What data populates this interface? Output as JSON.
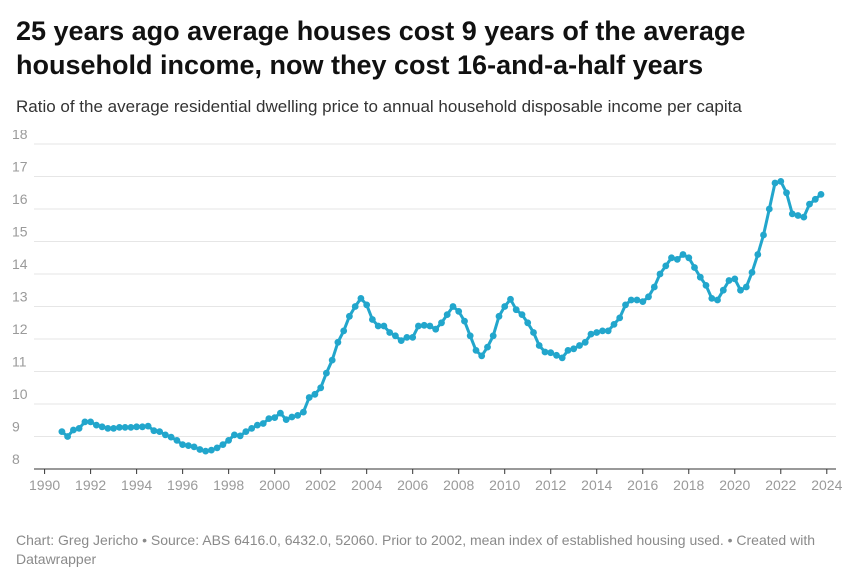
{
  "title": "25 years ago average houses cost 9 years of the average household income, now they cost 16-and-a-half years",
  "subtitle": "Ratio of the average residential dwelling price to annual household disposable income per capita",
  "footer": {
    "credit": "Chart: Greg Jericho",
    "source": "Source: ABS 6416.0, 6432.0, 52060. Prior to 2002, mean index of established housing used.",
    "created": "Created with Datawrapper"
  },
  "colors": {
    "line": "#22a6cc",
    "grid": "#e6e6e6",
    "tick": "#9a9a9a"
  },
  "chart_data": {
    "type": "line",
    "xlim": [
      1989.8,
      2024.4
    ],
    "ylim": [
      8,
      18
    ],
    "yticks": [
      "8",
      "9",
      "10",
      "11",
      "12",
      "13",
      "14",
      "15",
      "16",
      "17",
      "18"
    ],
    "xticks": [
      "1990",
      "1992",
      "1994",
      "1996",
      "1998",
      "2000",
      "2002",
      "2004",
      "2006",
      "2008",
      "2010",
      "2012",
      "2014",
      "2016",
      "2018",
      "2020",
      "2022",
      "2024"
    ],
    "grid": "horizontal",
    "series": [
      {
        "x": [
          1990.75,
          1991.0,
          1991.25,
          1991.5,
          1991.75,
          1992.0,
          1992.25,
          1992.5,
          1992.75,
          1993.0,
          1993.25,
          1993.5,
          1993.75,
          1994.0,
          1994.25,
          1994.5,
          1994.75,
          1995.0,
          1995.25,
          1995.5,
          1995.75,
          1996.0,
          1996.25,
          1996.5,
          1996.75,
          1997.0,
          1997.25,
          1997.5,
          1997.75,
          1998.0,
          1998.25,
          1998.5,
          1998.75,
          1999.0,
          1999.25,
          1999.5,
          1999.75,
          2000.0,
          2000.25,
          2000.5,
          2000.75,
          2001.0,
          2001.25,
          2001.5,
          2001.75,
          2002.0,
          2002.25,
          2002.5,
          2002.75,
          2003.0,
          2003.25,
          2003.5,
          2003.75,
          2004.0,
          2004.25,
          2004.5,
          2004.75,
          2005.0,
          2005.25,
          2005.5,
          2005.75,
          2006.0,
          2006.25,
          2006.5,
          2006.75,
          2007.0,
          2007.25,
          2007.5,
          2007.75,
          2008.0,
          2008.25,
          2008.5,
          2008.75,
          2009.0,
          2009.25,
          2009.5,
          2009.75,
          2010.0,
          2010.25,
          2010.5,
          2010.75,
          2011.0,
          2011.25,
          2011.5,
          2011.75,
          2012.0,
          2012.25,
          2012.5,
          2012.75,
          2013.0,
          2013.25,
          2013.5,
          2013.75,
          2014.0,
          2014.25,
          2014.5,
          2014.75,
          2015.0,
          2015.25,
          2015.5,
          2015.75,
          2016.0,
          2016.25,
          2016.5,
          2016.75,
          2017.0,
          2017.25,
          2017.5,
          2017.75,
          2018.0,
          2018.25,
          2018.5,
          2018.75,
          2019.0,
          2019.25,
          2019.5,
          2019.75,
          2020.0,
          2020.25,
          2020.5,
          2020.75,
          2021.0,
          2021.25,
          2021.5,
          2021.75,
          2022.0,
          2022.25,
          2022.5,
          2022.75,
          2023.0,
          2023.25,
          2023.5,
          2023.75
        ],
        "values": [
          9.15,
          9.0,
          9.2,
          9.25,
          9.45,
          9.45,
          9.35,
          9.3,
          9.25,
          9.25,
          9.28,
          9.28,
          9.28,
          9.3,
          9.3,
          9.32,
          9.18,
          9.15,
          9.05,
          8.98,
          8.88,
          8.75,
          8.72,
          8.68,
          8.6,
          8.55,
          8.58,
          8.65,
          8.75,
          8.88,
          9.05,
          9.02,
          9.15,
          9.25,
          9.35,
          9.4,
          9.55,
          9.58,
          9.72,
          9.52,
          9.6,
          9.65,
          9.75,
          10.2,
          10.3,
          10.5,
          10.95,
          11.35,
          11.9,
          12.25,
          12.7,
          13.0,
          13.25,
          13.05,
          12.6,
          12.4,
          12.4,
          12.2,
          12.1,
          11.95,
          12.05,
          12.05,
          12.4,
          12.42,
          12.4,
          12.3,
          12.5,
          12.75,
          13.0,
          12.85,
          12.55,
          12.1,
          11.65,
          11.48,
          11.75,
          12.1,
          12.7,
          13.0,
          13.22,
          12.9,
          12.75,
          12.5,
          12.2,
          11.8,
          11.6,
          11.58,
          11.5,
          11.42,
          11.65,
          11.7,
          11.8,
          11.9,
          12.15,
          12.2,
          12.25,
          12.25,
          12.45,
          12.65,
          13.05,
          13.2,
          13.2,
          13.15,
          13.3,
          13.6,
          14.0,
          14.25,
          14.5,
          14.45,
          14.6,
          14.5,
          14.2,
          13.9,
          13.65,
          13.25,
          13.2,
          13.5,
          13.8,
          13.85,
          13.5,
          13.6,
          14.05,
          14.6,
          15.2,
          16.0,
          16.8,
          16.85,
          16.5,
          15.85,
          15.8,
          15.75,
          16.15,
          16.3,
          16.45
        ]
      }
    ]
  }
}
